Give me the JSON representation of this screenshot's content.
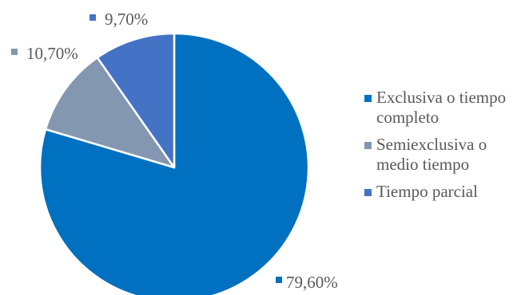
{
  "chart_data": {
    "type": "pie",
    "title": "",
    "categories": [
      "Exclusiva o tiempo completo",
      "Semiexclusiva o medio tiempo",
      "Tiempo parcial"
    ],
    "values": [
      79.6,
      10.7,
      9.7
    ],
    "data_labels": [
      "79,60%",
      "10,70%",
      "9,70%"
    ],
    "colors": [
      "#0070C0",
      "#8497B0",
      "#4472C4"
    ],
    "start_angle_deg": 0,
    "direction": "clockwise",
    "legend_position": "right"
  }
}
